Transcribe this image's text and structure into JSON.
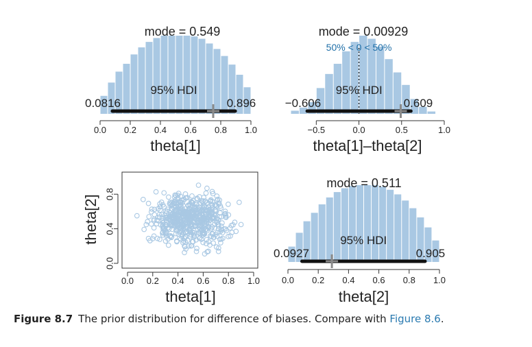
{
  "colors": {
    "bar": "#a9c8e3",
    "hdi": "#111111",
    "cross": "#8a8a8a",
    "point": "#a9c8e3",
    "ref": "#1f6fa8"
  },
  "caption": {
    "label": "Figure 8.7",
    "text": "The prior distribution for difference of biases. Compare with ",
    "link": "Figure 8.6",
    "end": "."
  },
  "chart_data": [
    {
      "type": "histogram",
      "xlabel": "theta[1]",
      "xlim": [
        0,
        1
      ],
      "ticks": [
        "0.0",
        "0.2",
        "0.4",
        "0.6",
        "0.8",
        "1.0"
      ],
      "tick_values": [
        0,
        0.2,
        0.4,
        0.6,
        0.8,
        1.0
      ],
      "mode_label": "mode = 0.549",
      "hdi_label": "95% HDI",
      "hdi": [
        0.0816,
        0.896
      ],
      "hdi_low_label": "0.0816",
      "hdi_high_label": "0.896",
      "cross": 0.75,
      "bins": [
        0.0,
        0.05,
        0.1,
        0.15,
        0.2,
        0.25,
        0.3,
        0.35,
        0.4,
        0.45,
        0.5,
        0.55,
        0.6,
        0.65,
        0.7,
        0.75,
        0.8,
        0.85,
        0.9,
        0.95,
        1.0
      ],
      "heights": [
        0.23,
        0.4,
        0.54,
        0.64,
        0.76,
        0.85,
        0.92,
        0.97,
        1.0,
        1.0,
        1.0,
        1.0,
        0.99,
        0.96,
        0.9,
        0.83,
        0.74,
        0.63,
        0.5,
        0.34
      ]
    },
    {
      "type": "histogram",
      "xlabel": "theta[1]–theta[2]",
      "xlim": [
        -0.8,
        1.0
      ],
      "ticks": [
        "−0.5",
        "0.0",
        "0.5",
        "1.0"
      ],
      "tick_values": [
        -0.5,
        0.0,
        0.5,
        1.0
      ],
      "mode_label": "mode = 0.00929",
      "ref_label": "50% < 0 < 50%",
      "ref_value": 0,
      "hdi_label": "95% HDI",
      "hdi": [
        -0.606,
        0.609
      ],
      "hdi_low_label": "−0.606",
      "hdi_high_label": "0.609",
      "cross": 0.49,
      "bins": [
        -0.8,
        -0.7,
        -0.6,
        -0.5,
        -0.4,
        -0.3,
        -0.2,
        -0.1,
        0.0,
        0.1,
        0.2,
        0.3,
        0.4,
        0.5,
        0.6,
        0.7,
        0.8,
        0.9
      ],
      "heights": [
        0.04,
        0.08,
        0.15,
        0.33,
        0.51,
        0.64,
        0.8,
        0.92,
        1.0,
        0.96,
        0.86,
        0.7,
        0.53,
        0.37,
        0.19,
        0.09,
        0.03
      ]
    },
    {
      "type": "scatter",
      "xlabel": "theta[1]",
      "ylabel": "theta[2]",
      "xlim": [
        0,
        1
      ],
      "ylim": [
        0,
        1
      ],
      "xticks": [
        "0.0",
        "0.2",
        "0.4",
        "0.6",
        "0.8",
        "1.0"
      ],
      "xtick_values": [
        0,
        0.2,
        0.4,
        0.6,
        0.8,
        1.0
      ],
      "yticks": [
        "0.0",
        "0.4",
        "0.8"
      ],
      "ytick_values": [
        0,
        0.4,
        0.8
      ],
      "n_points": 600
    },
    {
      "type": "histogram",
      "xlabel": "theta[2]",
      "xlim": [
        0,
        1
      ],
      "ticks": [
        "0.0",
        "0.2",
        "0.4",
        "0.6",
        "0.8",
        "1.0"
      ],
      "tick_values": [
        0,
        0.2,
        0.4,
        0.6,
        0.8,
        1.0
      ],
      "mode_label": "mode = 0.511",
      "hdi_label": "95% HDI",
      "hdi": [
        0.0927,
        0.905
      ],
      "hdi_low_label": "0.0927",
      "hdi_high_label": "0.905",
      "cross": 0.29,
      "bins": [
        0.0,
        0.05,
        0.1,
        0.15,
        0.2,
        0.25,
        0.3,
        0.35,
        0.4,
        0.45,
        0.5,
        0.55,
        0.6,
        0.65,
        0.7,
        0.75,
        0.8,
        0.85,
        0.9,
        0.95,
        1.0
      ],
      "heights": [
        0.2,
        0.38,
        0.53,
        0.64,
        0.75,
        0.84,
        0.91,
        0.96,
        0.99,
        1.0,
        1.0,
        1.0,
        0.98,
        0.94,
        0.88,
        0.8,
        0.7,
        0.58,
        0.45,
        0.28
      ]
    }
  ]
}
